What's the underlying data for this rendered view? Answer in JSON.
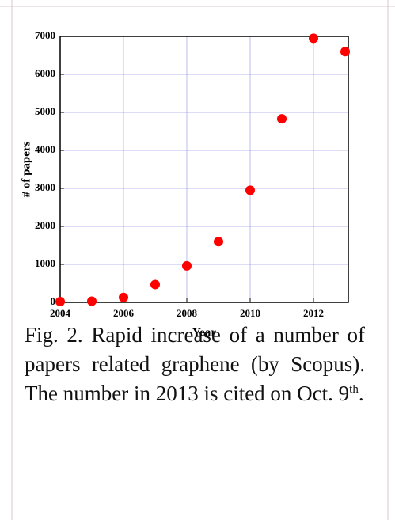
{
  "chart_data": {
    "type": "scatter",
    "x_label": "Year",
    "y_label": "# of papers",
    "x": [
      2004,
      2005,
      2006,
      2007,
      2008,
      2009,
      2010,
      2011,
      2012,
      2013
    ],
    "series": [
      {
        "color": "#ff0000",
        "values": [
          20,
          30,
          130,
          470,
          960,
          1600,
          2950,
          4830,
          6950,
          6600
        ]
      }
    ],
    "xlim": [
      2004,
      2013.1
    ],
    "xticks": [
      2004,
      2006,
      2008,
      2010,
      2012
    ],
    "ylim": [
      0,
      7000
    ],
    "yticks": [
      0,
      1000,
      2000,
      3000,
      4000,
      5000,
      6000,
      7000
    ],
    "grid": true,
    "grid_color": "#a0a0e8"
  },
  "caption": {
    "text": "Fig. 2. Rapid increase of a number of papers related graphene (by Scopus). The number in 2013 is cited on Oct. 9",
    "superscript": "th",
    "tail": "."
  }
}
